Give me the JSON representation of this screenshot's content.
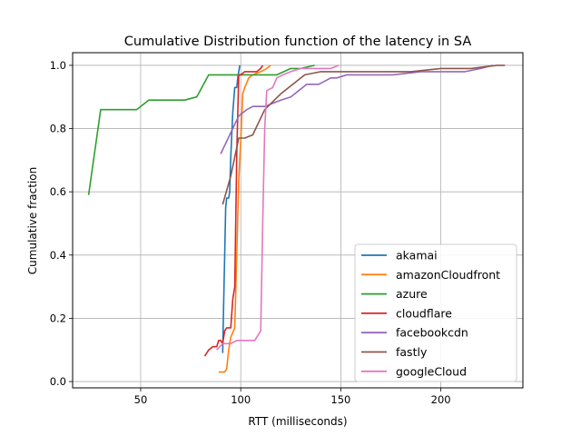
{
  "chart_data": {
    "type": "line",
    "title": "Cumulative Distribution function of the latency in SA",
    "xlabel": "RTT (milliseconds)",
    "ylabel": "Cumulative fraction",
    "xlim": [
      16,
      241
    ],
    "ylim": [
      -0.02,
      1.04
    ],
    "xticks": [
      50,
      100,
      150,
      200
    ],
    "yticks": [
      0.0,
      0.2,
      0.4,
      0.6,
      0.8,
      1.0
    ],
    "grid": true,
    "legend_position": "lower right",
    "series": [
      {
        "name": "akamai",
        "color": "#1f77b4",
        "x": [
          91,
          91.5,
          92,
          92.5,
          93,
          94,
          94.5,
          95,
          96,
          97,
          98,
          98.5,
          99,
          99.5
        ],
        "y": [
          0.09,
          0.25,
          0.4,
          0.55,
          0.58,
          0.58,
          0.6,
          0.71,
          0.85,
          0.93,
          0.93,
          0.96,
          0.98,
          1.0
        ]
      },
      {
        "name": "amazonCloudfront",
        "color": "#ff7f0e",
        "x": [
          89,
          92,
          93,
          94,
          95,
          97,
          98,
          99,
          100,
          101,
          102,
          104,
          106,
          110,
          113,
          115
        ],
        "y": [
          0.03,
          0.03,
          0.04,
          0.1,
          0.14,
          0.17,
          0.4,
          0.64,
          0.76,
          0.91,
          0.93,
          0.96,
          0.97,
          0.98,
          0.99,
          1.0
        ]
      },
      {
        "name": "azure",
        "color": "#2ca02c",
        "x": [
          24,
          30,
          48,
          54,
          67,
          72,
          78,
          84,
          100,
          118,
          125,
          130,
          137
        ],
        "y": [
          0.59,
          0.86,
          0.86,
          0.89,
          0.89,
          0.89,
          0.9,
          0.97,
          0.97,
          0.97,
          0.99,
          0.99,
          1.0
        ]
      },
      {
        "name": "cloudflare",
        "color": "#d62728",
        "x": [
          82,
          84,
          86,
          88,
          89,
          90,
          91,
          92,
          93,
          94,
          95,
          96,
          97,
          98,
          99,
          100,
          102,
          104,
          106,
          108,
          110,
          111
        ],
        "y": [
          0.08,
          0.1,
          0.11,
          0.11,
          0.13,
          0.13,
          0.12,
          0.16,
          0.17,
          0.17,
          0.17,
          0.26,
          0.3,
          0.72,
          0.97,
          0.97,
          0.98,
          0.98,
          0.98,
          0.98,
          0.99,
          1.0
        ]
      },
      {
        "name": "facebookcdn",
        "color": "#9467bd",
        "x": [
          90,
          96,
          99,
          103,
          106,
          112,
          116,
          120,
          125,
          133,
          139,
          145,
          148,
          153,
          165,
          176,
          190,
          212,
          220,
          226
        ],
        "y": [
          0.72,
          0.8,
          0.84,
          0.86,
          0.87,
          0.87,
          0.88,
          0.89,
          0.9,
          0.94,
          0.94,
          0.96,
          0.96,
          0.97,
          0.97,
          0.97,
          0.98,
          0.98,
          0.99,
          1.0
        ]
      },
      {
        "name": "fastly",
        "color": "#8c564b",
        "x": [
          91,
          95,
          99,
          102,
          106,
          112,
          120,
          132,
          140,
          150,
          165,
          185,
          200,
          215,
          228,
          232
        ],
        "y": [
          0.56,
          0.65,
          0.77,
          0.77,
          0.78,
          0.86,
          0.91,
          0.97,
          0.98,
          0.98,
          0.98,
          0.98,
          0.99,
          0.99,
          1.0,
          1.0
        ]
      },
      {
        "name": "googleCloud",
        "color": "#e377c2",
        "x": [
          88,
          91,
          95,
          98,
          103,
          107,
          110,
          111,
          112,
          113,
          116,
          118,
          121,
          125,
          130,
          138,
          145,
          149
        ],
        "y": [
          0.1,
          0.12,
          0.12,
          0.13,
          0.13,
          0.13,
          0.16,
          0.5,
          0.8,
          0.92,
          0.93,
          0.96,
          0.97,
          0.98,
          0.99,
          0.99,
          0.99,
          1.0
        ]
      }
    ]
  }
}
